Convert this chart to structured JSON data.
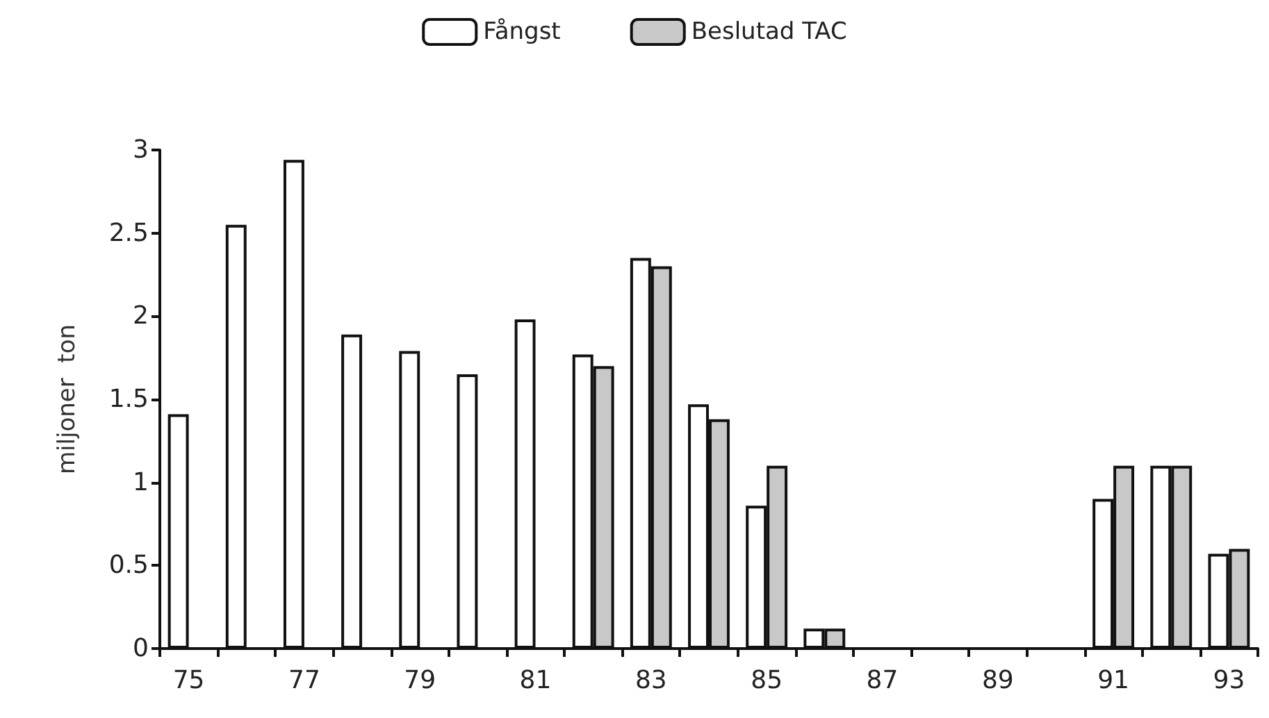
{
  "chart_data": {
    "type": "bar",
    "ylabel": "miljoner  ton",
    "categories": [
      "75",
      null,
      "77",
      null,
      "79",
      null,
      "81",
      null,
      "83",
      null,
      "85",
      null,
      "87",
      null,
      "89",
      null,
      "91",
      null,
      "93"
    ],
    "series": [
      {
        "name": "Fångst",
        "color": "#ffffff",
        "values": [
          1.41,
          2.55,
          2.94,
          1.89,
          1.79,
          1.65,
          1.98,
          1.77,
          2.35,
          1.47,
          0.86,
          0.12,
          null,
          null,
          null,
          null,
          0.9,
          1.1,
          0.57
        ]
      },
      {
        "name": "Beslutad TAC",
        "color": "#c8c8c8",
        "values": [
          null,
          null,
          null,
          null,
          null,
          null,
          null,
          1.7,
          2.3,
          1.38,
          1.1,
          0.12,
          null,
          null,
          null,
          null,
          1.1,
          1.1,
          0.6
        ]
      }
    ],
    "ylim": [
      0,
      3
    ],
    "yticks": [
      0,
      0.5,
      1,
      1.5,
      2,
      2.5,
      3
    ],
    "grid": false,
    "legend": "top"
  }
}
